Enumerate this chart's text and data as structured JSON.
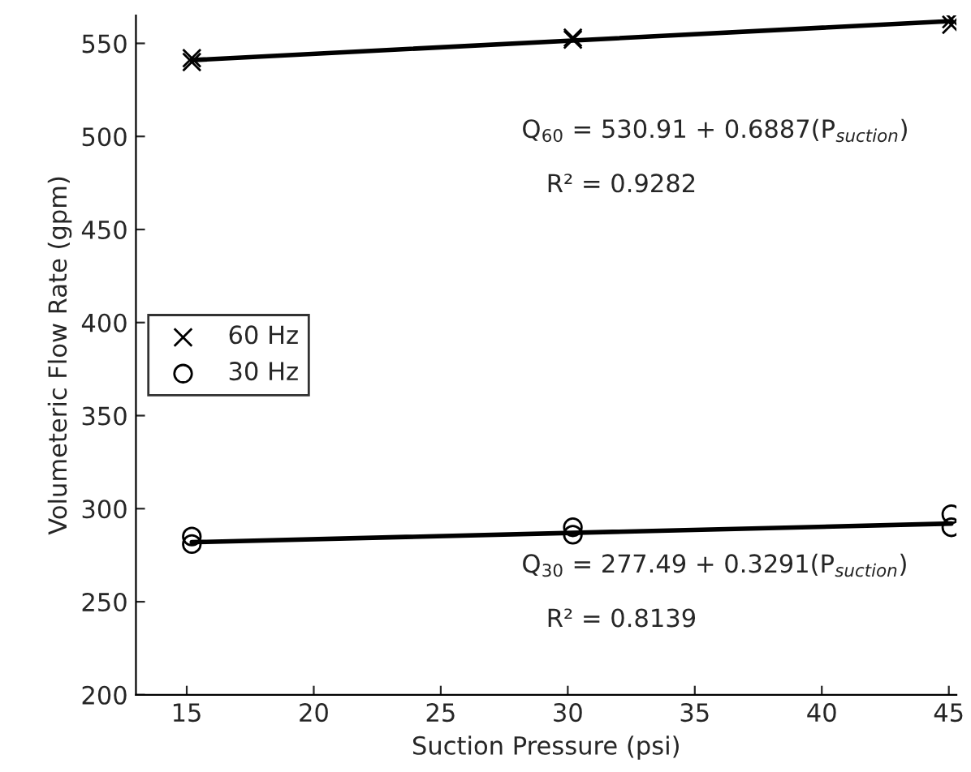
{
  "chart_data": {
    "type": "scatter",
    "xlabel": "Suction Pressure (psi)",
    "ylabel": "Volumeteric Flow Rate (gpm)",
    "xlim": [
      13,
      45.3
    ],
    "xticks": [
      15,
      20,
      25,
      30,
      35,
      40,
      45
    ],
    "ylim": [
      200,
      565
    ],
    "yticks": [
      200,
      250,
      300,
      350,
      400,
      450,
      500,
      550
    ],
    "grid": false,
    "legend": "left",
    "series": [
      {
        "name": "60 Hz",
        "marker": "cross",
        "color": "#000000",
        "x": [
          15.2,
          15.2,
          30.2,
          30.2,
          45.1,
          45.1
        ],
        "values": [
          540,
          542,
          552,
          553,
          560,
          563
        ]
      },
      {
        "name": "30 Hz",
        "marker": "circle",
        "color": "#000000",
        "x": [
          15.2,
          15.2,
          30.2,
          30.2,
          45.1,
          45.1
        ],
        "values": [
          281,
          285,
          286,
          290,
          290,
          297
        ]
      },
      {
        "type": "line",
        "line_style": "solid",
        "color": "#000000",
        "x": [
          15.2,
          45.1
        ],
        "values": [
          541,
          562
        ]
      },
      {
        "type": "line",
        "line_style": "solid",
        "color": "#000000",
        "x": [
          15.2,
          45.1
        ],
        "values": [
          282,
          292
        ]
      }
    ],
    "annotations": [
      "Q$_{60}$ = 530.91 + 0.6887(P$_{suction}$)",
      "R² = 0.9282",
      "Q$_{30}$ = 277.49 + 0.3291(P$_{suction}$)",
      "R² = 0.8139"
    ]
  }
}
